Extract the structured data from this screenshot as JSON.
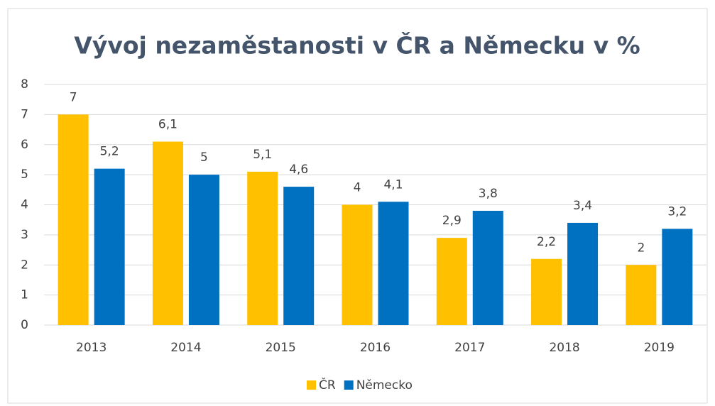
{
  "chart_data": {
    "type": "bar",
    "title": "Vývoj nezaměstanosti v ČR a Německu v %",
    "categories": [
      "2013",
      "2014",
      "2015",
      "2016",
      "2017",
      "2018",
      "2019"
    ],
    "series": [
      {
        "name": "ČR",
        "color": "#ffc000",
        "values": [
          7,
          6.1,
          5.1,
          4,
          2.9,
          2.2,
          2
        ],
        "value_labels": [
          "7",
          "6,1",
          "5,1",
          "4",
          "2,9",
          "2,2",
          "2"
        ]
      },
      {
        "name": "Německo",
        "color": "#0070c0",
        "values": [
          5.2,
          5,
          4.6,
          4.1,
          3.8,
          3.4,
          3.2
        ],
        "value_labels": [
          "5,2",
          "5",
          "4,6",
          "4,1",
          "3,8",
          "3,4",
          "3,2"
        ]
      }
    ],
    "ylim": [
      0,
      8
    ],
    "yticks": [
      0,
      1,
      2,
      3,
      4,
      5,
      6,
      7,
      8
    ],
    "grid": true,
    "legend": "bottom"
  }
}
